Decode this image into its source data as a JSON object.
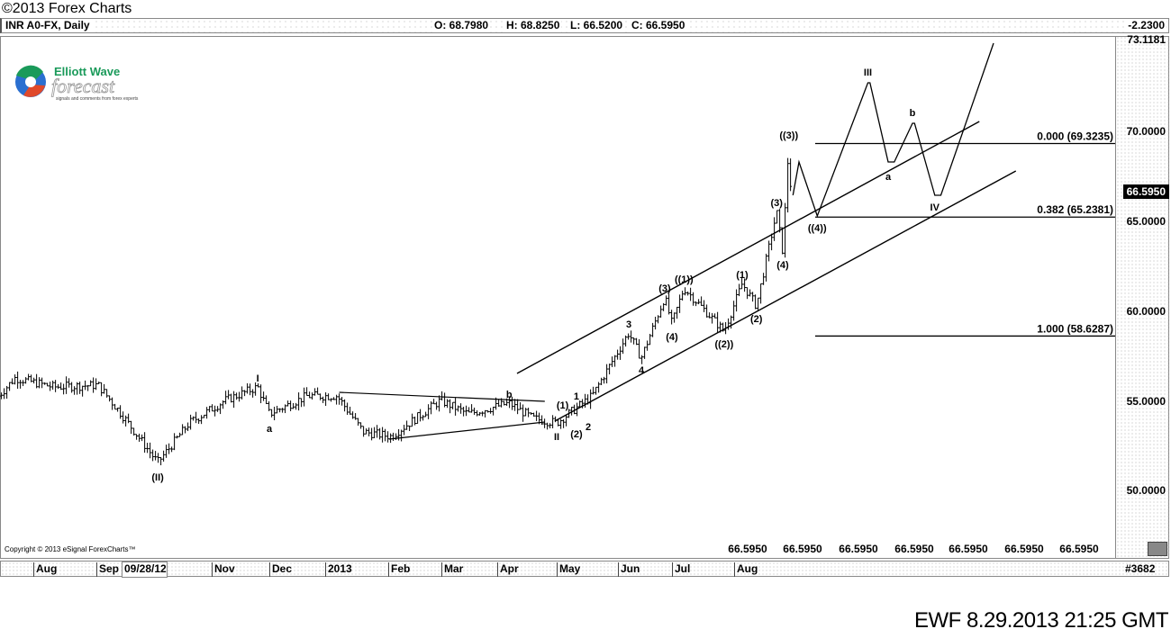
{
  "top_title": "©2013 Forex Charts",
  "header": {
    "symbol": "INR A0-FX, Daily",
    "open": "O: 68.7980",
    "high": "H: 68.8250",
    "low": "L: 66.5200",
    "close": "C: 66.5950",
    "change": "-2.2300"
  },
  "logo": {
    "line1": "Elliott Wave",
    "line2": "forecast",
    "tagline": "signals and comments from forex experts"
  },
  "copyright": "Copyright © 2013 eSignal ForexCharts™",
  "price_axis": {
    "top_value": "73.1181",
    "ticks": [
      "70.0000",
      "65.0000",
      "60.0000",
      "55.0000",
      "50.0000"
    ],
    "current_price": "66.5950"
  },
  "time_axis": {
    "labels": [
      "Aug",
      "Sep",
      "09/28/12",
      "Nov",
      "Dec",
      "2013",
      "Feb",
      "Mar",
      "Apr",
      "May",
      "Jun",
      "Jul",
      "Aug"
    ],
    "bar_count": "#3682"
  },
  "bottom_values": [
    "66.5950",
    "66.5950",
    "66.5950",
    "66.5950",
    "66.5950",
    "66.5950",
    "66.5950"
  ],
  "footer": "EWF 8.29.2013 21:25 GMT",
  "colors": {
    "line": "#000000",
    "axis_bg": "#f4f4f4",
    "current_box": "#000000",
    "logo_green": "#1a9a5a",
    "logo_blue": "#2a6fd0",
    "logo_red": "#e0492a"
  },
  "chart_data": {
    "type": "ohlc",
    "symbol": "INR A0-FX",
    "interval": "Daily",
    "ylim": [
      47.4,
      73.1181
    ],
    "yticks": [
      50,
      55,
      60,
      65,
      70
    ],
    "price_swings": [
      [
        "2012-07-15",
        55.3
      ],
      [
        "2012-07-23",
        56.3
      ],
      [
        "2012-08-11",
        55.8
      ],
      [
        "2012-09-02",
        55.9
      ],
      [
        "2012-09-14",
        54.3
      ],
      [
        "2012-10-03",
        51.6
      ],
      [
        "2012-10-20",
        53.8
      ],
      [
        "2012-11-08",
        55.05
      ],
      [
        "2012-11-25",
        55.8
      ],
      [
        "2012-12-01",
        54.3
      ],
      [
        "2012-12-22",
        55.3
      ],
      [
        "2013-01-07",
        55.3
      ],
      [
        "2013-01-20",
        53.3
      ],
      [
        "2013-02-03",
        53.05
      ],
      [
        "2013-03-01",
        55.05
      ],
      [
        "2013-03-16",
        54.3
      ],
      [
        "2013-04-07",
        54.9
      ],
      [
        "2013-04-19",
        54.05
      ],
      [
        "2013-05-01",
        53.8
      ],
      [
        "2013-05-19",
        55.3
      ],
      [
        "2013-06-07",
        58.8
      ],
      [
        "2013-06-14",
        57.4
      ],
      [
        "2013-06-27",
        60.8
      ],
      [
        "2013-07-01",
        59.3
      ],
      [
        "2013-07-07",
        61.3
      ],
      [
        "2013-07-27",
        58.9
      ],
      [
        "2013-08-05",
        61.55
      ],
      [
        "2013-08-12",
        60.3
      ],
      [
        "2013-08-22",
        65.55
      ],
      [
        "2013-08-25",
        63.3
      ],
      [
        "2013-08-28",
        69.3
      ],
      [
        "2013-08-29",
        66.595
      ]
    ],
    "wave_labels": [
      {
        "text": "(II)",
        "date": "2012-10-03",
        "price": 51.6
      },
      {
        "text": "I",
        "date": "2012-11-25",
        "price": 55.8
      },
      {
        "text": "a",
        "date": "2012-12-01",
        "price": 54.3
      },
      {
        "text": "b",
        "date": "2013-04-07",
        "price": 54.9
      },
      {
        "text": "II",
        "date": "2013-05-01",
        "price": 53.8
      },
      {
        "text": "(1)",
        "date": "2013-05-04",
        "price": 54.3
      },
      {
        "text": "1",
        "date": "2013-05-11",
        "price": 54.8
      },
      {
        "text": "(2)",
        "date": "2013-05-11",
        "price": 53.9
      },
      {
        "text": "2",
        "date": "2013-05-17",
        "price": 54.2
      },
      {
        "text": "3",
        "date": "2013-06-07",
        "price": 58.8
      },
      {
        "text": "4",
        "date": "2013-06-14",
        "price": 57.4
      },
      {
        "text": "(3)",
        "date": "2013-06-27",
        "price": 60.8
      },
      {
        "text": "(4)",
        "date": "2013-07-01",
        "price": 59.3
      },
      {
        "text": "((1))",
        "date": "2013-07-07",
        "price": 61.3
      },
      {
        "text": "((2))",
        "date": "2013-07-27",
        "price": 58.9
      },
      {
        "text": "(1)",
        "date": "2013-08-05",
        "price": 61.55
      },
      {
        "text": "(2)",
        "date": "2013-08-12",
        "price": 60.3
      },
      {
        "text": "(3)",
        "date": "2013-08-22",
        "price": 65.55
      },
      {
        "text": "(4)",
        "date": "2013-08-25",
        "price": 63.3
      },
      {
        "text": "((3))",
        "date": "2013-08-28",
        "price": 69.3
      },
      {
        "text": "((4))",
        "date": "2013-09-11",
        "price": 65.3
      },
      {
        "text": "III",
        "date": "2013-10-06",
        "price": 72.8
      },
      {
        "text": "a",
        "date": "2013-10-16",
        "price": 68.3
      },
      {
        "text": "b",
        "date": "2013-10-28",
        "price": 70.55
      },
      {
        "text": "IV",
        "date": "2013-11-08",
        "price": 66.55
      }
    ],
    "projection": [
      [
        "2013-08-30",
        66.45
      ],
      [
        "2013-09-02",
        68.3
      ],
      [
        "2013-09-11",
        65.3
      ],
      [
        "2013-10-06",
        72.7
      ],
      [
        "2013-10-07",
        72.7
      ],
      [
        "2013-10-16",
        68.3
      ],
      [
        "2013-10-19",
        68.3
      ],
      [
        "2013-10-28",
        70.45
      ],
      [
        "2013-10-29",
        70.45
      ],
      [
        "2013-11-08",
        66.45
      ],
      [
        "2013-11-11",
        66.45
      ],
      [
        "2013-12-07",
        74.9
      ]
    ],
    "channel_lines": [
      {
        "from": [
          "2013-04-11",
          56.55
        ],
        "to": [
          "2013-11-30",
          70.55
        ]
      },
      {
        "from": [
          "2013-04-30",
          53.9
        ],
        "to": [
          "2013-12-18",
          67.8
        ]
      }
    ],
    "triangle_lines": [
      {
        "from": [
          "2013-01-08",
          55.5
        ],
        "to": [
          "2013-04-25",
          55.0
        ]
      },
      {
        "from": [
          "2013-02-02",
          52.9
        ],
        "to": [
          "2013-04-25",
          53.85
        ]
      }
    ],
    "fib_levels": [
      {
        "ratio": "0.000",
        "price": 69.3235,
        "label": "0.000 (69.3235)"
      },
      {
        "ratio": "0.382",
        "price": 65.2381,
        "label": "0.382 (65.2381)"
      },
      {
        "ratio": "1.000",
        "price": 58.6287,
        "label": "1.000 (58.6287)"
      }
    ]
  }
}
